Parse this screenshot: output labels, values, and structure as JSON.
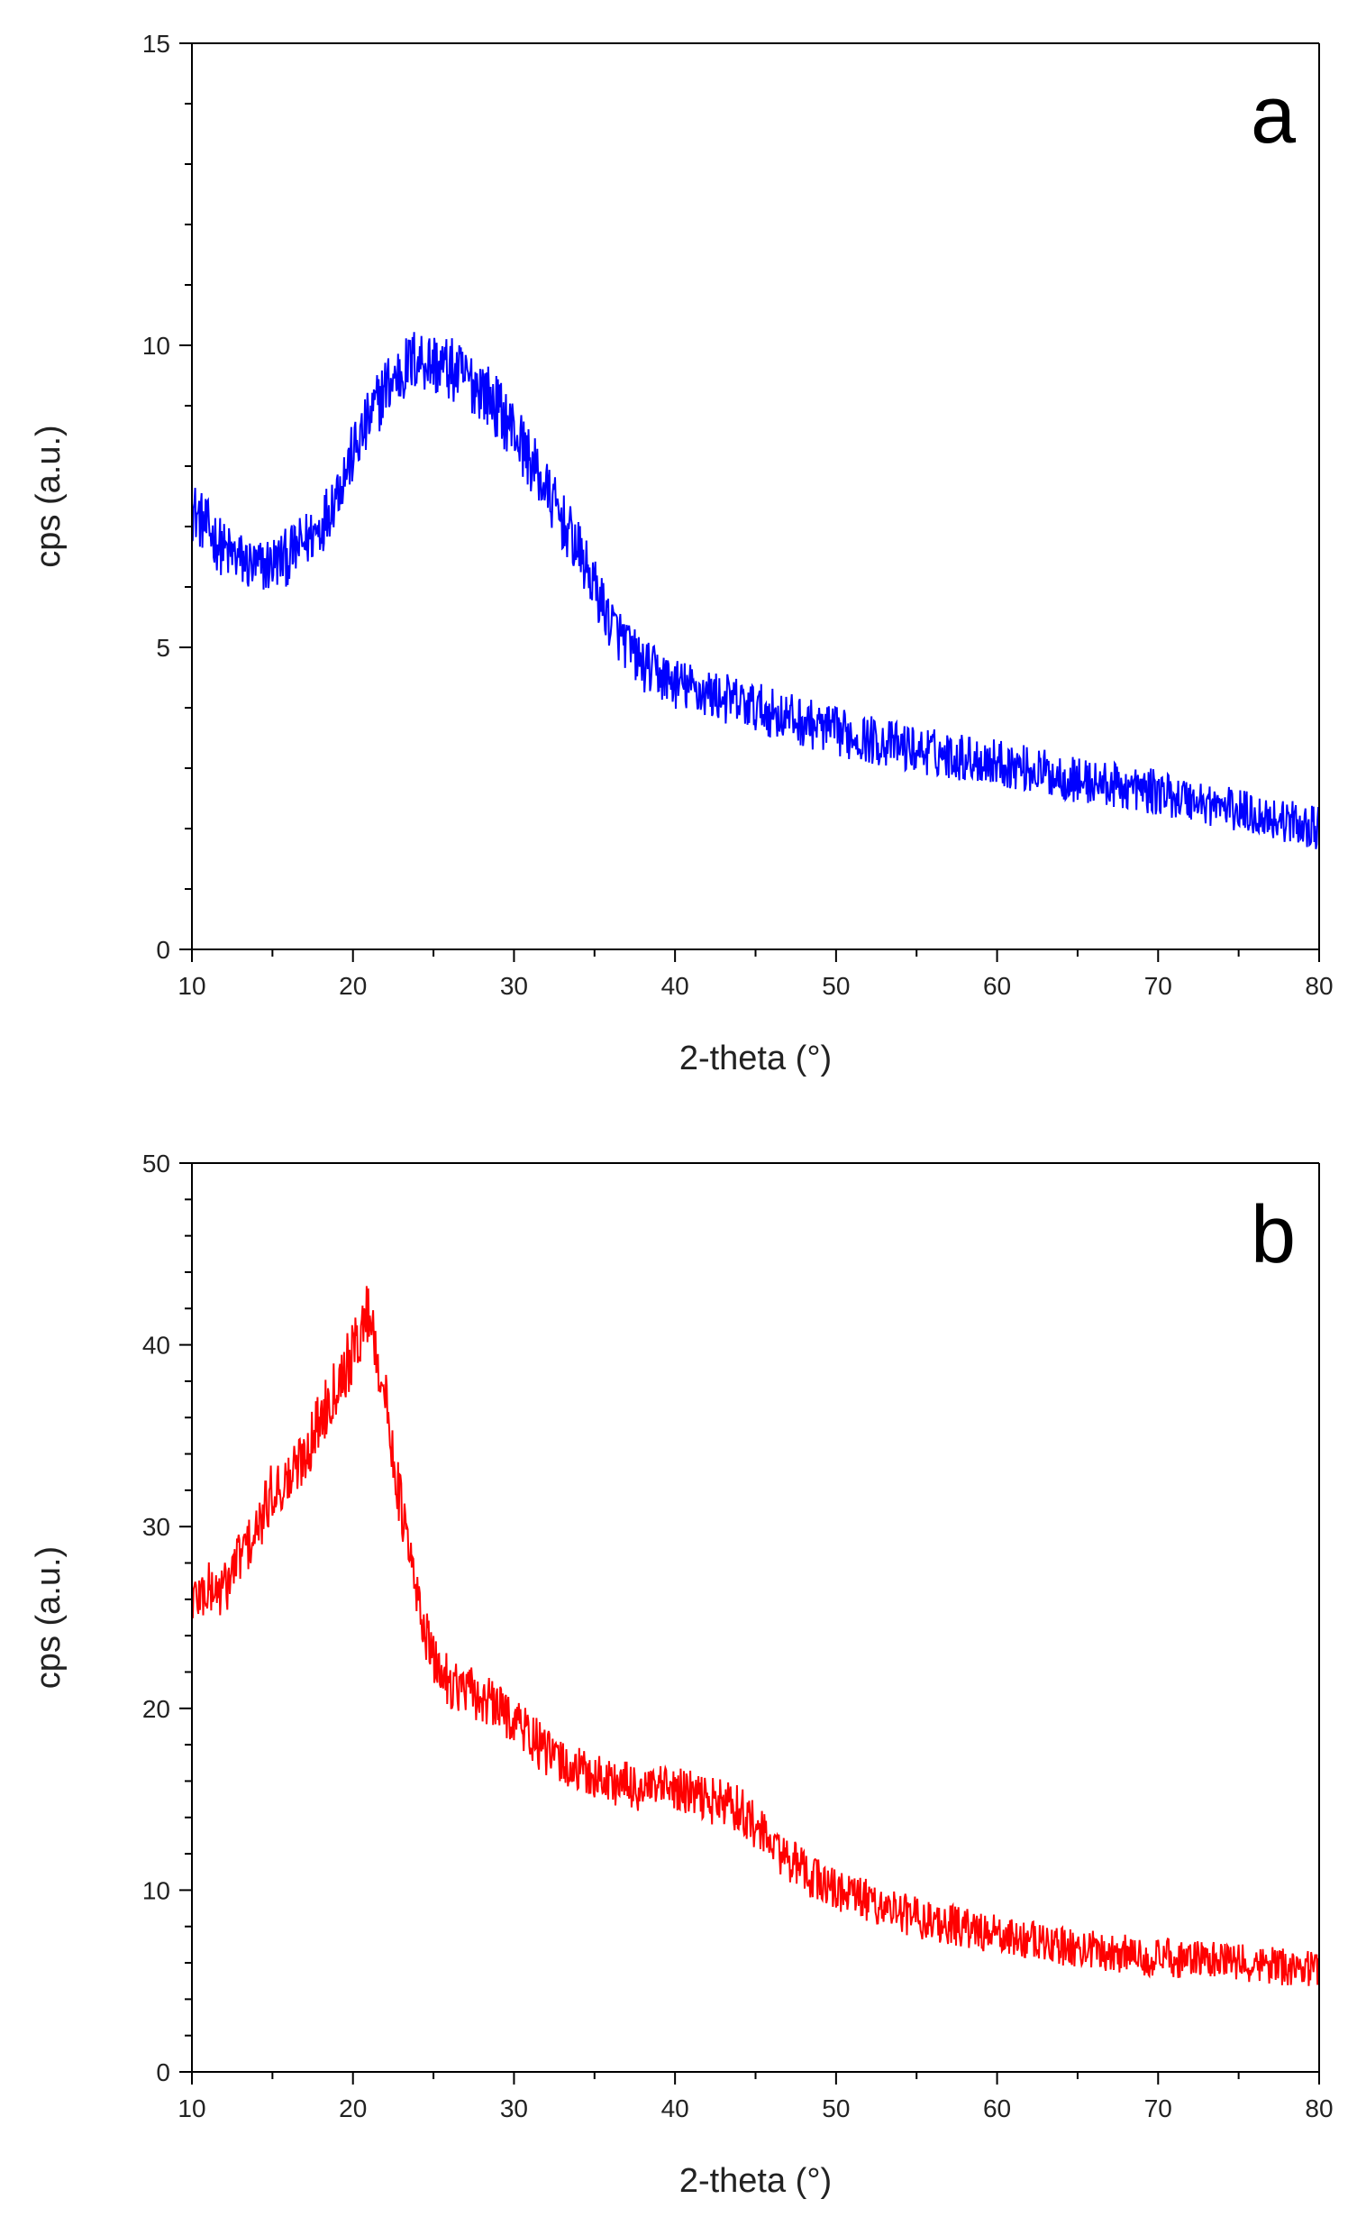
{
  "chart_data": [
    {
      "type": "line",
      "panel_label": "a",
      "xlabel": "2-theta (°)",
      "ylabel": "cps (a.u.)",
      "xlim": [
        10,
        80
      ],
      "ylim": [
        0,
        15
      ],
      "xticks": [
        10,
        20,
        30,
        40,
        50,
        60,
        70,
        80
      ],
      "yticks": [
        0,
        5,
        10,
        15
      ],
      "color": "#0000ff",
      "series": [
        {
          "name": "a",
          "x": [
            10,
            12,
            14,
            16,
            18,
            20,
            22,
            24,
            26,
            28,
            30,
            32,
            34,
            36,
            38,
            40,
            45,
            50,
            55,
            60,
            65,
            70,
            75,
            80
          ],
          "y": [
            7.3,
            6.6,
            6.3,
            6.5,
            7.0,
            8.2,
            9.3,
            9.8,
            9.6,
            9.3,
            8.6,
            7.6,
            6.6,
            5.4,
            4.7,
            4.4,
            4.0,
            3.6,
            3.3,
            3.1,
            2.8,
            2.6,
            2.3,
            2.0
          ],
          "noise": 0.55
        }
      ]
    },
    {
      "type": "line",
      "panel_label": "b",
      "xlabel": "2-theta (°)",
      "ylabel": "cps (a.u.)",
      "xlim": [
        10,
        80
      ],
      "ylim": [
        0,
        50
      ],
      "xticks": [
        10,
        20,
        30,
        40,
        50,
        60,
        70,
        80
      ],
      "yticks": [
        0,
        10,
        20,
        30,
        40,
        50
      ],
      "color": "#ff0000",
      "series": [
        {
          "name": "b",
          "x": [
            10,
            11,
            12,
            13,
            14,
            15,
            16,
            17,
            18,
            19,
            20,
            21,
            22,
            23,
            24,
            25,
            26,
            28,
            30,
            32,
            34,
            36,
            38,
            40,
            42,
            44,
            46,
            48,
            50,
            55,
            60,
            65,
            70,
            75,
            80
          ],
          "y": [
            26,
            26.5,
            26.5,
            28.5,
            29.5,
            32,
            32.5,
            34,
            36,
            38,
            39.5,
            42,
            37,
            31,
            26,
            22.5,
            21.5,
            20.5,
            19.5,
            17.5,
            16.5,
            16,
            15.5,
            15.5,
            15,
            14.5,
            12.5,
            11,
            10,
            8.5,
            7.5,
            6.8,
            6.3,
            6,
            5.7
          ],
          "noise": 1.8
        }
      ]
    }
  ]
}
